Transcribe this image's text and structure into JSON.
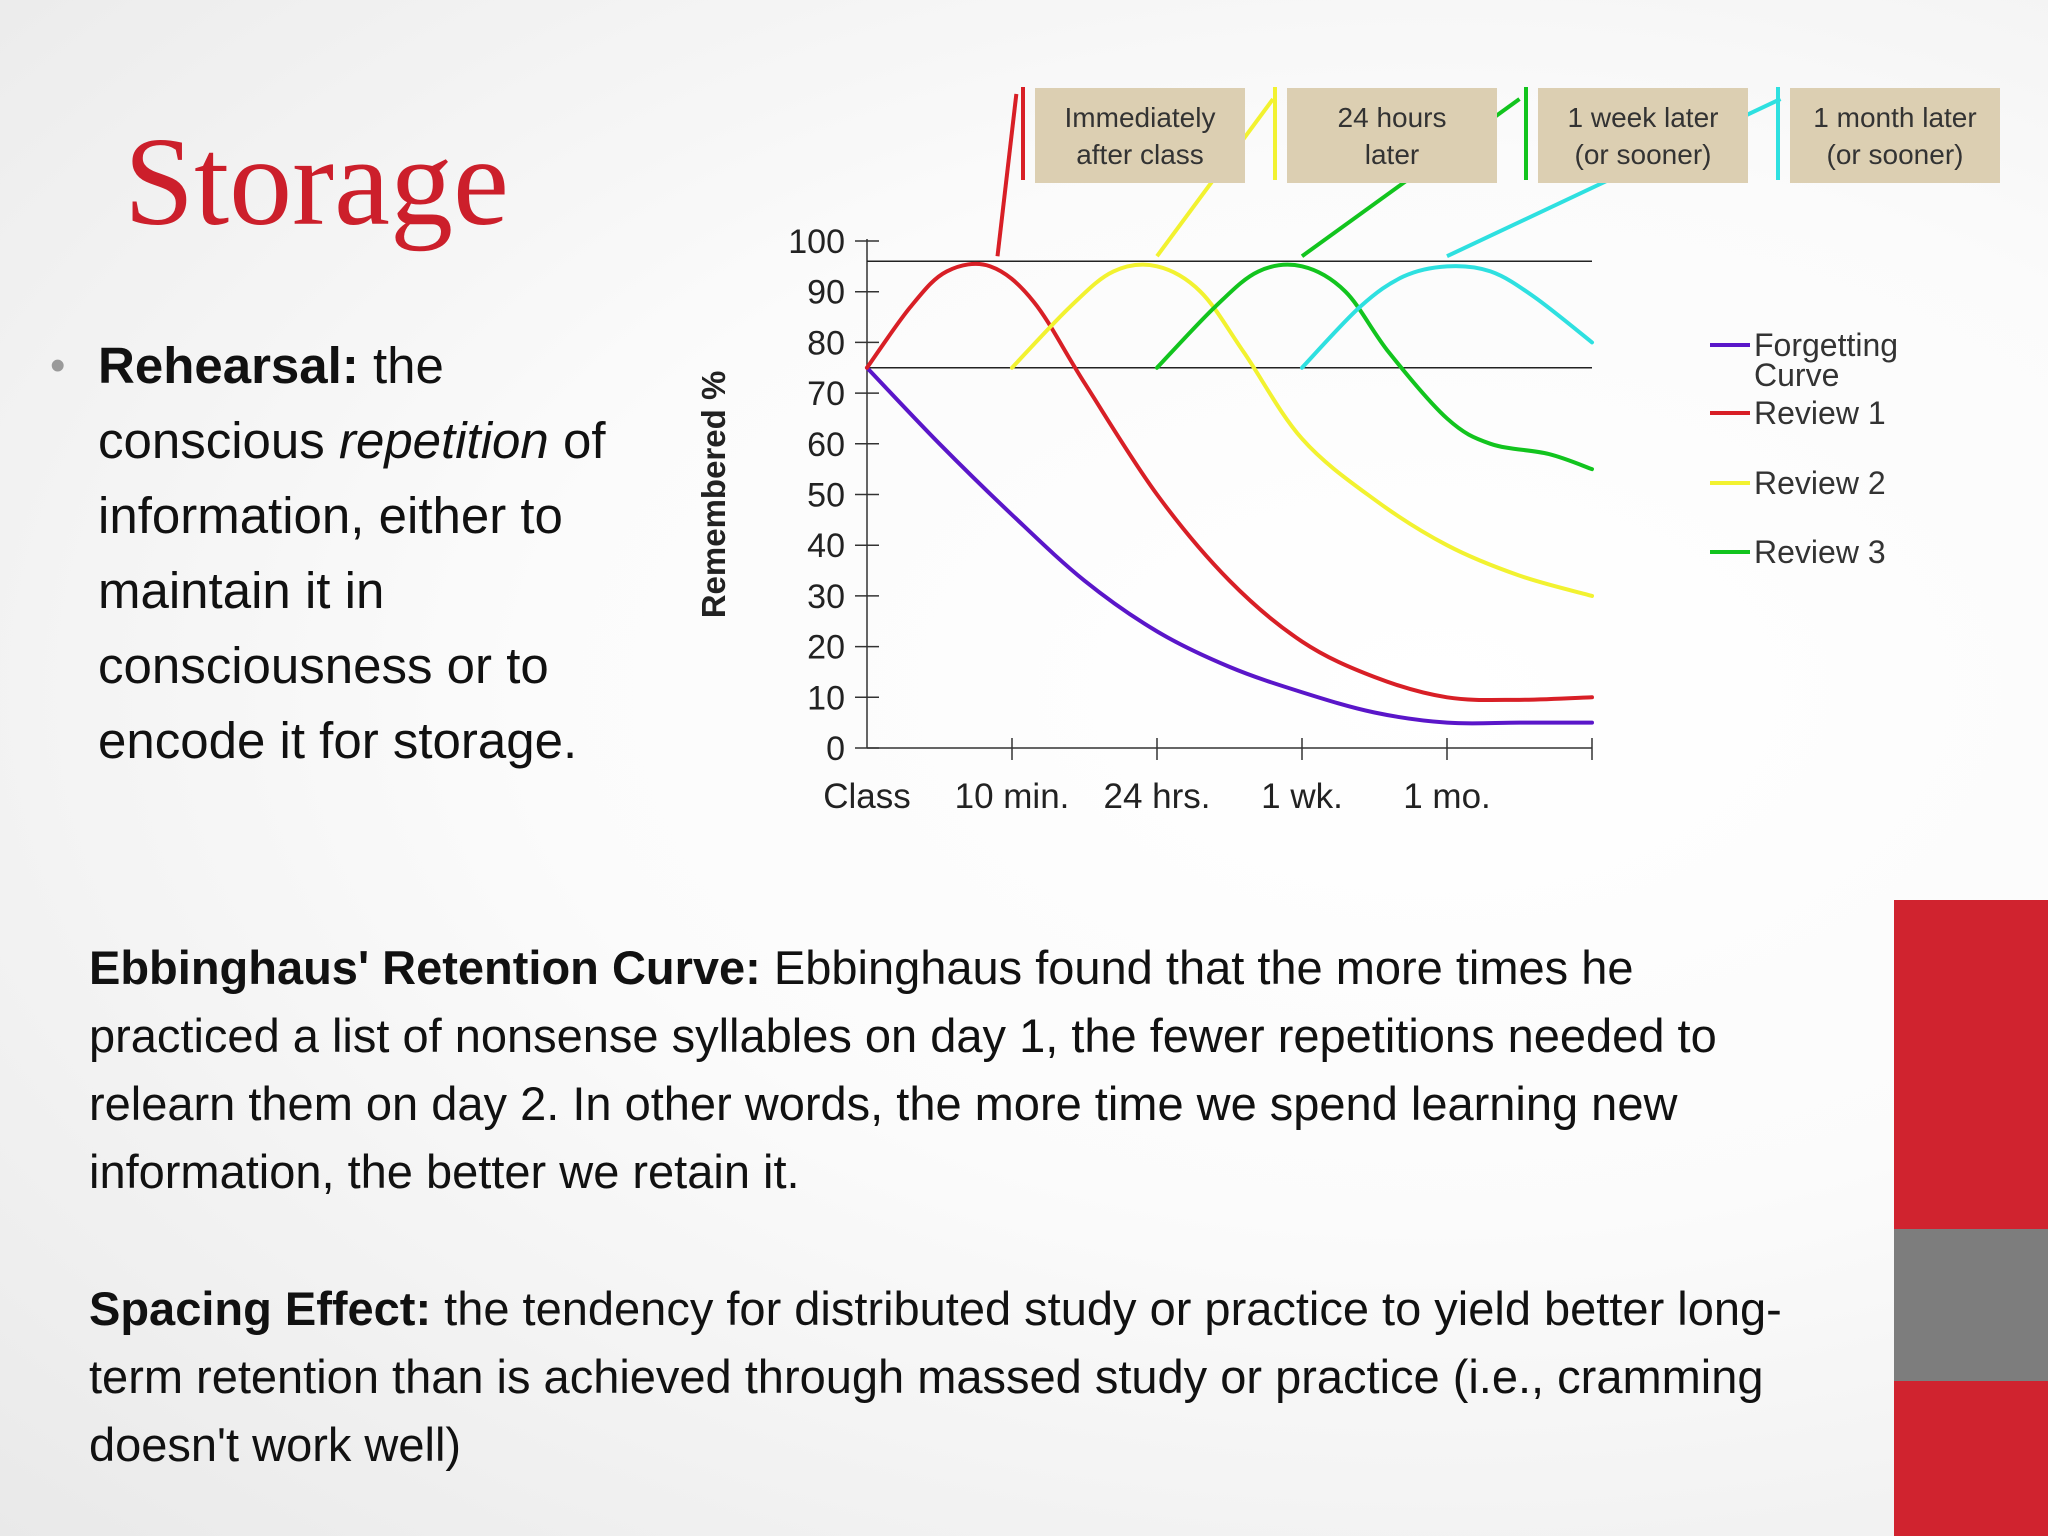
{
  "slide": {
    "title": "Storage",
    "bullet": {
      "term": "Rehearsal:",
      "text_1": " the conscious ",
      "text_italic": "repetition",
      "text_2": " of information, either to maintain it in consciousness or to encode it for storage."
    },
    "paragraph_1": {
      "term": "Ebbinghaus' Retention Curve:",
      "text": " Ebbinghaus found that the more times he practiced a list of nonsense syllables on day 1, the fewer repetitions needed to relearn them on day 2.  In other words, the more time we spend learning new information, the better we retain it."
    },
    "paragraph_2": {
      "term": "Spacing Effect:",
      "text": " the tendency for distributed study or practice to yield better long-term retention than is achieved through massed study or practice (i.e., cramming doesn't work well)"
    },
    "accent_colors": {
      "red": "#d0232f",
      "gray": "#7d7d7d",
      "title_red": "#cc1f2b"
    }
  },
  "chart_data": {
    "type": "line",
    "ylabel": "Remembered %",
    "xlabel": "",
    "ylim": [
      0,
      100
    ],
    "yticks": [
      0,
      10,
      20,
      30,
      40,
      50,
      60,
      70,
      80,
      90,
      100
    ],
    "x_categories": [
      "Class",
      "10 min.",
      "24 hrs.",
      "1 wk.",
      "1 mo."
    ],
    "xlim": [
      0,
      5
    ],
    "reference_lines": [
      75,
      96
    ],
    "review_labels": [
      {
        "line1": "Immediately",
        "line2": "after class",
        "color": "#d81f26"
      },
      {
        "line1": "24 hours",
        "line2": "later",
        "color": "#f2f230"
      },
      {
        "line1": "1 week later",
        "line2": "(or sooner)",
        "color": "#12c41e"
      },
      {
        "line1": "1 month later",
        "line2": "(or sooner)",
        "color": "#2ee0e0"
      }
    ],
    "label_box_color": "#dccfb2",
    "legend_position": "right",
    "series": [
      {
        "name": "Forgetting Curve",
        "color": "#5a16c9",
        "points": [
          [
            0,
            75
          ],
          [
            0.5,
            60
          ],
          [
            1,
            46
          ],
          [
            1.5,
            33
          ],
          [
            2,
            23
          ],
          [
            2.5,
            16
          ],
          [
            3,
            11
          ],
          [
            3.5,
            7
          ],
          [
            4,
            5
          ],
          [
            4.5,
            5
          ],
          [
            5,
            5
          ]
        ]
      },
      {
        "name": "Review 1",
        "color": "#d81f26",
        "points": [
          [
            0,
            75
          ],
          [
            0.3,
            87
          ],
          [
            0.55,
            94
          ],
          [
            0.85,
            95
          ],
          [
            1.15,
            88
          ],
          [
            1.5,
            72
          ],
          [
            2,
            50
          ],
          [
            2.5,
            33
          ],
          [
            3,
            21
          ],
          [
            3.5,
            14
          ],
          [
            4,
            10
          ],
          [
            4.5,
            9.5
          ],
          [
            5,
            10
          ]
        ]
      },
      {
        "name": "Review 2",
        "color": "#f2f230",
        "points": [
          [
            1,
            75
          ],
          [
            1.4,
            87
          ],
          [
            1.7,
            94
          ],
          [
            2,
            95
          ],
          [
            2.3,
            90
          ],
          [
            2.6,
            78
          ],
          [
            3,
            61
          ],
          [
            3.5,
            49
          ],
          [
            4,
            40
          ],
          [
            4.5,
            34
          ],
          [
            5,
            30
          ]
        ]
      },
      {
        "name": "Review 3",
        "color": "#12c41e",
        "points": [
          [
            2,
            75
          ],
          [
            2.4,
            87
          ],
          [
            2.7,
            94
          ],
          [
            3,
            95
          ],
          [
            3.3,
            90
          ],
          [
            3.6,
            78
          ],
          [
            4,
            65
          ],
          [
            4.3,
            60
          ],
          [
            4.7,
            58
          ],
          [
            5,
            55
          ]
        ]
      },
      {
        "name": "",
        "color": "#2ee0e0",
        "points": [
          [
            3,
            75
          ],
          [
            3.4,
            87
          ],
          [
            3.7,
            93
          ],
          [
            4,
            95
          ],
          [
            4.3,
            94
          ],
          [
            4.6,
            89
          ],
          [
            5,
            80
          ]
        ]
      }
    ],
    "connectors": [
      {
        "color": "#d81f26",
        "from": [
          0.9,
          97
        ],
        "to": [
          1.03,
          129
        ]
      },
      {
        "color": "#f2f230",
        "from": [
          2.0,
          97
        ],
        "to": [
          2.8,
          128
        ]
      },
      {
        "color": "#12c41e",
        "from": [
          3.0,
          97
        ],
        "to": [
          4.5,
          128
        ]
      },
      {
        "color": "#2ee0e0",
        "from": [
          4.0,
          97
        ],
        "to": [
          6.3,
          128
        ]
      }
    ],
    "legend": [
      {
        "line1": "Forgetting",
        "line2": "Curve",
        "color": "#5a16c9"
      },
      {
        "line1": "Review 1",
        "line2": "",
        "color": "#d81f26"
      },
      {
        "line1": "Review 2",
        "line2": "",
        "color": "#f2f230"
      },
      {
        "line1": "Review 3",
        "line2": "",
        "color": "#12c41e"
      }
    ]
  }
}
